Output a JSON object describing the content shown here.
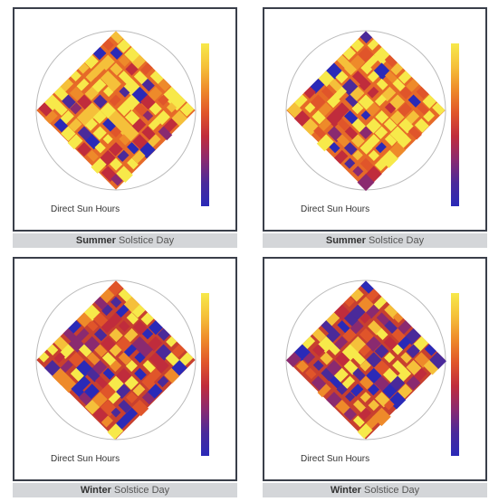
{
  "panels": [
    {
      "label": "Direct Sun Hours",
      "season": "Summer",
      "caption": "Solstice Day"
    },
    {
      "label": "Direct Sun Hours",
      "season": "Summer",
      "caption": "Solstice Day"
    },
    {
      "label": "Direct Sun Hours",
      "season": "Winter",
      "caption": "Solstice Day"
    },
    {
      "label": "Direct Sun Hours",
      "season": "Winter",
      "caption": "Solstice Day"
    }
  ]
}
